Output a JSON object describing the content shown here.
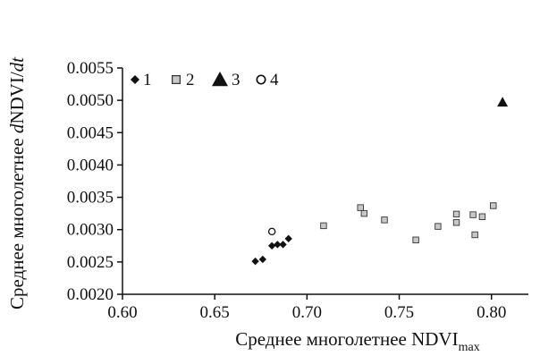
{
  "chart_data": {
    "type": "scatter",
    "xlabel": {
      "main": "Среднее многолетнее NDVI",
      "sub": "max"
    },
    "ylabel": {
      "main": "Среднее многолетнее ",
      "italic_pre": "d",
      "mid": "NDVI/",
      "italic_post": "dt"
    },
    "xlim": [
      0.6,
      0.82
    ],
    "ylim": [
      0.002,
      0.0055
    ],
    "x_ticks": [
      "0.60",
      "0.65",
      "0.70",
      "0.75",
      "0.80"
    ],
    "y_ticks": [
      "0.0020",
      "0.0025",
      "0.0030",
      "0.0035",
      "0.0040",
      "0.0045",
      "0.0050",
      "0.0055"
    ],
    "legend_position": "top-left",
    "series": [
      {
        "name": "1",
        "marker": "filled-diamond",
        "color": "#111111",
        "points": [
          [
            0.672,
            0.00251
          ],
          [
            0.676,
            0.00254
          ],
          [
            0.681,
            0.00275
          ],
          [
            0.684,
            0.00277
          ],
          [
            0.687,
            0.00277
          ],
          [
            0.69,
            0.00286
          ]
        ]
      },
      {
        "name": "2",
        "marker": "grey-square",
        "color": "#c8c8c8",
        "points": [
          [
            0.709,
            0.00306
          ],
          [
            0.729,
            0.00334
          ],
          [
            0.731,
            0.00325
          ],
          [
            0.742,
            0.00315
          ],
          [
            0.759,
            0.00284
          ],
          [
            0.771,
            0.00305
          ],
          [
            0.781,
            0.00324
          ],
          [
            0.781,
            0.00311
          ],
          [
            0.79,
            0.00323
          ],
          [
            0.791,
            0.00292
          ],
          [
            0.795,
            0.0032
          ],
          [
            0.801,
            0.00337
          ]
        ]
      },
      {
        "name": "3",
        "marker": "filled-triangle",
        "color": "#111111",
        "points": [
          [
            0.806,
            0.00497
          ]
        ]
      },
      {
        "name": "4",
        "marker": "open-circle",
        "color": "#111111",
        "points": [
          [
            0.681,
            0.00297
          ]
        ]
      }
    ]
  }
}
